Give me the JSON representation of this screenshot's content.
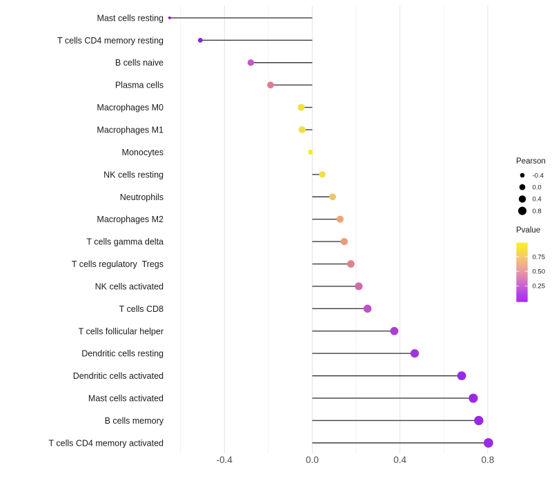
{
  "chart_data": {
    "type": "lollipop",
    "title": "",
    "xlabel": "",
    "ylabel": "",
    "x_ticks": [
      {
        "value": -0.4,
        "label": "-0.4"
      },
      {
        "value": 0.0,
        "label": "0.0"
      },
      {
        "value": 0.4,
        "label": "0.4"
      },
      {
        "value": 0.8,
        "label": "0.8"
      }
    ],
    "x_minor_ticks": [
      -0.6,
      -0.2,
      0.2,
      0.6
    ],
    "xlim": [
      -0.66,
      0.88
    ],
    "grid": "vertical-only",
    "segment_color": "#3d3d3d",
    "points": [
      {
        "label": "Mast cells resting",
        "pearson": -0.65,
        "radius": 2.0,
        "color": "#8A1CC8"
      },
      {
        "label": "T cells CD4 memory resting",
        "pearson": -0.51,
        "radius": 3.4,
        "color": "#8E22CC"
      },
      {
        "label": "B cells naive",
        "pearson": -0.28,
        "radius": 4.7,
        "color": "#C356C9"
      },
      {
        "label": "Plasma cells",
        "pearson": -0.19,
        "radius": 4.9,
        "color": "#DD7E8F"
      },
      {
        "label": "Macrophages M0",
        "pearson": -0.05,
        "radius": 5.0,
        "color": "#F2DE41"
      },
      {
        "label": "Macrophages M1",
        "pearson": -0.046,
        "radius": 5.0,
        "color": "#F2DE41"
      },
      {
        "label": "Monocytes",
        "pearson": -0.008,
        "radius": 3.6,
        "color": "#F6ED1E"
      },
      {
        "label": "NK cells resting",
        "pearson": 0.046,
        "radius": 4.7,
        "color": "#F2DF41"
      },
      {
        "label": "Neutrophils",
        "pearson": 0.093,
        "radius": 4.9,
        "color": "#F0C566"
      },
      {
        "label": "Macrophages M2",
        "pearson": 0.127,
        "radius": 5.1,
        "color": "#ECA376"
      },
      {
        "label": "T cells gamma delta",
        "pearson": 0.146,
        "radius": 5.2,
        "color": "#E89D7C"
      },
      {
        "label": "T cells regulatory  Tregs",
        "pearson": 0.176,
        "radius": 5.4,
        "color": "#DE838E"
      },
      {
        "label": "NK cells activated",
        "pearson": 0.212,
        "radius": 5.6,
        "color": "#CF6BAD"
      },
      {
        "label": "T cells CD8",
        "pearson": 0.252,
        "radius": 5.8,
        "color": "#C150C5"
      },
      {
        "label": "T cells follicular helper",
        "pearson": 0.374,
        "radius": 5.9,
        "color": "#AA3CD8"
      },
      {
        "label": "Dendritic cells resting",
        "pearson": 0.467,
        "radius": 6.1,
        "color": "#A133DC"
      },
      {
        "label": "Dendritic cells activated",
        "pearson": 0.681,
        "radius": 6.4,
        "color": "#9929E5"
      },
      {
        "label": "Mast cells activated",
        "pearson": 0.734,
        "radius": 6.6,
        "color": "#9929E5"
      },
      {
        "label": "B cells memory",
        "pearson": 0.759,
        "radius": 6.7,
        "color": "#9929E5"
      },
      {
        "label": "T cells CD4 memory activated",
        "pearson": 0.803,
        "radius": 6.9,
        "color": "#9C2BE6"
      }
    ],
    "size_legend": {
      "title": "Pearson",
      "dot_color": "#000000",
      "entries": [
        {
          "label": "-0.4",
          "radius": 3.3
        },
        {
          "label": "0.0",
          "radius": 4.3
        },
        {
          "label": "0.4",
          "radius": 5.2
        },
        {
          "label": "0.8",
          "radius": 6.0
        }
      ]
    },
    "color_legend": {
      "title": "Pvalue",
      "tick_labels": [
        "0.75",
        "0.50",
        "0.25"
      ],
      "gradient": [
        {
          "offset": 0.0,
          "color": "#F9F125"
        },
        {
          "offset": 0.12,
          "color": "#F6E03C"
        },
        {
          "offset": 0.25,
          "color": "#F3C873"
        },
        {
          "offset": 0.38,
          "color": "#EEAE8C"
        },
        {
          "offset": 0.5,
          "color": "#E595A4"
        },
        {
          "offset": 0.62,
          "color": "#D97BC0"
        },
        {
          "offset": 0.75,
          "color": "#C65CD6"
        },
        {
          "offset": 0.88,
          "color": "#B23FE8"
        },
        {
          "offset": 1.0,
          "color": "#AB2BEF"
        }
      ]
    },
    "colors": {
      "grid_major": "#E3E3E3",
      "grid_minor": "#F1F1F1",
      "axis_text": "#4D4D4D",
      "label_text": "#1A1A1A"
    }
  }
}
